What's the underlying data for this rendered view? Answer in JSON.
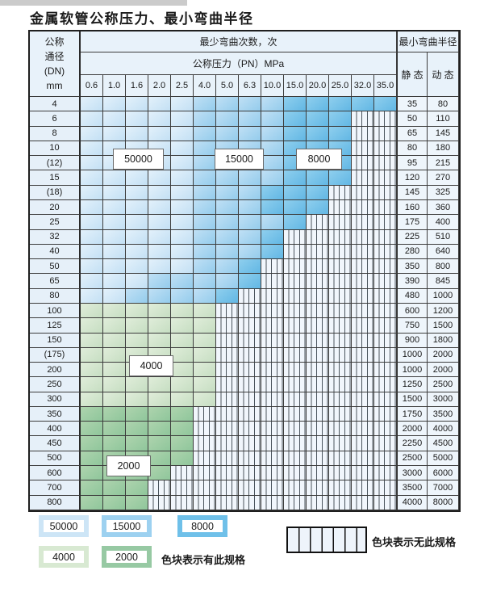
{
  "title": "金属软管公称压力、最小弯曲半径",
  "table": {
    "corner_header": "公称\n通径\n(DN)\nmm",
    "bend_cycles_header": "最少弯曲次数，次",
    "radius_header": "最小弯曲半径",
    "pressure_header": "公称压力（PN）MPa",
    "pressure_columns": [
      "0.6",
      "1.0",
      "1.6",
      "2.0",
      "2.5",
      "4.0",
      "5.0",
      "6.3",
      "10.0",
      "15.0",
      "20.0",
      "25.0",
      "32.0",
      "35.0"
    ],
    "static_header": "静 态",
    "dynamic_header": "动 态",
    "cell_legend": {
      "a": "50000",
      "b": "15000",
      "c": "8000",
      "g": "4000",
      "h": "2000",
      "x": "no-spec-hatched"
    },
    "rows": [
      {
        "dn": "4",
        "cells": "aaaaabbbbccccc",
        "static": "35",
        "dynamic": "80"
      },
      {
        "dn": "6",
        "cells": "aaaaabbbbcccxx",
        "static": "50",
        "dynamic": "110"
      },
      {
        "dn": "8",
        "cells": "aaaaabbbbcccxx",
        "static": "65",
        "dynamic": "145"
      },
      {
        "dn": "10",
        "cells": "aaaaabbbbcccxx",
        "static": "80",
        "dynamic": "180"
      },
      {
        "dn": "(12)",
        "cells": "aaaaabbbbcccxx",
        "static": "95",
        "dynamic": "215"
      },
      {
        "dn": "15",
        "cells": "aaaaabbbbcccxx",
        "static": "120",
        "dynamic": "270"
      },
      {
        "dn": "(18)",
        "cells": "aaaaabbbcccxxx",
        "static": "145",
        "dynamic": "325"
      },
      {
        "dn": "20",
        "cells": "aaaaabbbcccxxx",
        "static": "160",
        "dynamic": "360"
      },
      {
        "dn": "25",
        "cells": "aaaaabbbbcxxxx",
        "static": "175",
        "dynamic": "400"
      },
      {
        "dn": "32",
        "cells": "aaaaabbbcxxxxx",
        "static": "225",
        "dynamic": "510"
      },
      {
        "dn": "40",
        "cells": "aaaaabbbcxxxxx",
        "static": "280",
        "dynamic": "640"
      },
      {
        "dn": "50",
        "cells": "aaaaabbcxxxxxx",
        "static": "350",
        "dynamic": "800"
      },
      {
        "dn": "65",
        "cells": "aaabbbbcxxxxxx",
        "static": "390",
        "dynamic": "845"
      },
      {
        "dn": "80",
        "cells": "aabbbbcxxxxxxx",
        "static": "480",
        "dynamic": "1000"
      },
      {
        "dn": "100",
        "cells": "ggggggxxxxxxxx",
        "static": "600",
        "dynamic": "1200"
      },
      {
        "dn": "125",
        "cells": "ggggggxxxxxxxx",
        "static": "750",
        "dynamic": "1500"
      },
      {
        "dn": "150",
        "cells": "ggggggxxxxxxxx",
        "static": "900",
        "dynamic": "1800"
      },
      {
        "dn": "(175)",
        "cells": "ggggggxxxxxxxx",
        "static": "1000",
        "dynamic": "2000"
      },
      {
        "dn": "200",
        "cells": "ggggggxxxxxxxx",
        "static": "1000",
        "dynamic": "2000"
      },
      {
        "dn": "250",
        "cells": "ggggggxxxxxxxx",
        "static": "1250",
        "dynamic": "2500"
      },
      {
        "dn": "300",
        "cells": "ggggggxxxxxxxx",
        "static": "1500",
        "dynamic": "3000"
      },
      {
        "dn": "350",
        "cells": "hhhhhxxxxxxxxx",
        "static": "1750",
        "dynamic": "3500"
      },
      {
        "dn": "400",
        "cells": "hhhhhxxxxxxxxx",
        "static": "2000",
        "dynamic": "4000"
      },
      {
        "dn": "450",
        "cells": "hhhhhxxxxxxxxx",
        "static": "2250",
        "dynamic": "4500"
      },
      {
        "dn": "500",
        "cells": "hhhhhxxxxxxxxx",
        "static": "2500",
        "dynamic": "5000"
      },
      {
        "dn": "600",
        "cells": "hhhhxxxxxxxxxx",
        "static": "3000",
        "dynamic": "6000"
      },
      {
        "dn": "700",
        "cells": "hhhxxxxxxxxxxx",
        "static": "3500",
        "dynamic": "7000"
      },
      {
        "dn": "800",
        "cells": "hhhxxxxxxxxxxx",
        "static": "4000",
        "dynamic": "8000"
      }
    ]
  },
  "overlays": [
    {
      "text": "50000"
    },
    {
      "text": "15000"
    },
    {
      "text": "8000"
    },
    {
      "text": "4000"
    },
    {
      "text": "2000"
    }
  ],
  "legend": {
    "items": [
      {
        "label": "50000",
        "color": "#cde5f6"
      },
      {
        "label": "15000",
        "color": "#9dd1f0"
      },
      {
        "label": "8000",
        "color": "#6fc0e9"
      },
      {
        "label": "4000",
        "color": "#d8e9d2"
      },
      {
        "label": "2000",
        "color": "#97c9a3"
      }
    ],
    "has_spec_text": "色块表示有此规格",
    "no_spec_text": "色块表示无此规格"
  },
  "colors": {
    "zone_50000": "#cfe5f5",
    "zone_15000": "#a5d3ef",
    "zone_8000": "#72c0e8",
    "zone_4000": "#d6e8d0",
    "zone_2000": "#9ccaa1",
    "header_bg": "#e8f2fa",
    "hatch_line": "#4a545d",
    "border": "#3c3c3c"
  }
}
